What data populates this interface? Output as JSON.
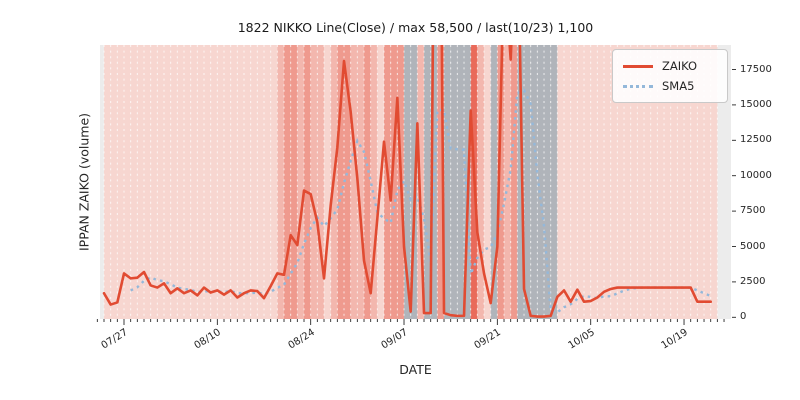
{
  "figure": {
    "title": "1822 NIKKO Line(Close) / max 58,500 / last(10/23) 1,100",
    "xlabel": "DATE",
    "ylabel": "IPPAN ZAIKO (volume)"
  },
  "legend": {
    "items": [
      {
        "label": "ZAIKO",
        "style": "solid",
        "color": "#e14b32"
      },
      {
        "label": "SMA5",
        "style": "dotted",
        "color": "#94b8da"
      }
    ]
  },
  "chart_data": {
    "type": "line",
    "title": "1822 NIKKO Line(Close) / max 58,500 / last(10/23) 1,100",
    "xlabel": "DATE",
    "ylabel": "IPPAN ZAIKO (volume)",
    "stats": {
      "max": 58500,
      "last_date": "10/23",
      "last_value": 1100
    },
    "y_ticks": [
      0,
      2500,
      5000,
      7500,
      10000,
      12500,
      15000,
      17500
    ],
    "ylim": [
      -400,
      19250
    ],
    "grid": "vertical-dashed-white-per-day",
    "legend_position": "upper right",
    "x_major_tick_labels": [
      "07/27",
      "08/10",
      "08/24",
      "09/07",
      "09/21",
      "10/05",
      "10/19"
    ],
    "x_major_tick_day_indexes": [
      3,
      17,
      31,
      45,
      59,
      73,
      87
    ],
    "dates": [
      "07/24",
      "07/25",
      "07/26",
      "07/27",
      "07/28",
      "07/29",
      "07/30",
      "07/31",
      "08/01",
      "08/02",
      "08/03",
      "08/04",
      "08/05",
      "08/06",
      "08/07",
      "08/08",
      "08/09",
      "08/10",
      "08/11",
      "08/12",
      "08/13",
      "08/14",
      "08/15",
      "08/16",
      "08/17",
      "08/18",
      "08/19",
      "08/20",
      "08/21",
      "08/22",
      "08/23",
      "08/24",
      "08/25",
      "08/26",
      "08/27",
      "08/28",
      "08/29",
      "08/30",
      "08/31",
      "09/01",
      "09/02",
      "09/03",
      "09/04",
      "09/05",
      "09/06",
      "09/07",
      "09/08",
      "09/09",
      "09/10",
      "09/11",
      "09/12",
      "09/13",
      "09/14",
      "09/15",
      "09/16",
      "09/17",
      "09/18",
      "09/19",
      "09/20",
      "09/21",
      "09/22",
      "09/23",
      "09/24",
      "09/25",
      "09/26",
      "09/27",
      "09/28",
      "09/29",
      "09/30",
      "10/01",
      "10/02",
      "10/03",
      "10/04",
      "10/05",
      "10/06",
      "10/07",
      "10/08",
      "10/09",
      "10/10",
      "10/11",
      "10/12",
      "10/13",
      "10/14",
      "10/15",
      "10/16",
      "10/17",
      "10/18",
      "10/19",
      "10/20",
      "10/21",
      "10/22",
      "10/23"
    ],
    "series": [
      {
        "name": "ZAIKO",
        "color": "#e14b32",
        "line_style": "solid",
        "line_width": 2.6,
        "values": [
          1700,
          900,
          1050,
          3100,
          2750,
          2800,
          3200,
          2250,
          2100,
          2400,
          1700,
          2050,
          1700,
          1900,
          1550,
          2100,
          1750,
          1900,
          1600,
          1900,
          1400,
          1700,
          1900,
          1850,
          1350,
          2200,
          3100,
          3000,
          5800,
          5100,
          8950,
          8700,
          6700,
          2750,
          7900,
          12000,
          18100,
          14500,
          9800,
          4000,
          1700,
          7000,
          12400,
          8250,
          15500,
          5000,
          400,
          13700,
          300,
          300,
          58500,
          300,
          150,
          100,
          100,
          14600,
          6000,
          3100,
          1000,
          5000,
          25000,
          18200,
          30000,
          2000,
          100,
          50,
          50,
          100,
          1450,
          1900,
          1100,
          1950,
          1100,
          1150,
          1400,
          1800,
          2000,
          2100,
          2100,
          2100,
          2100,
          2100,
          2100,
          2100,
          2100,
          2100,
          2100,
          2100,
          2100,
          1100,
          1100,
          1100
        ]
      },
      {
        "name": "SMA5",
        "color": "#94b8da",
        "line_style": "dotted",
        "line_width": 2.4,
        "values": [
          null,
          null,
          null,
          null,
          1900,
          2120,
          2580,
          2820,
          2620,
          2550,
          2330,
          2100,
          1990,
          1950,
          1780,
          1860,
          1800,
          1840,
          1780,
          1850,
          1710,
          1700,
          1700,
          1750,
          1640,
          1800,
          2080,
          2300,
          3090,
          3840,
          5190,
          6310,
          7050,
          6440,
          7000,
          7610,
          9490,
          11050,
          12460,
          11680,
          9620,
          7400,
          6980,
          6670,
          8970,
          9630,
          8310,
          8570,
          6980,
          3940,
          14640,
          14620,
          11910,
          11870,
          11830,
          3050,
          4190,
          4780,
          4960,
          5940,
          8020,
          10460,
          15840,
          16040,
          15060,
          10070,
          6440,
          460,
          350,
          710,
          920,
          1300,
          1500,
          1440,
          1340,
          1480,
          1490,
          1690,
          1880,
          2020,
          2080,
          2100,
          2100,
          2100,
          2100,
          2100,
          2100,
          2100,
          2100,
          1900,
          1700,
          1500
        ]
      }
    ],
    "background_day_bands": {
      "palette": {
        "p0": "#f7d6d0",
        "p1": "#f3b7ae",
        "p2": "#ef9a8e",
        "p3": "#e96a5a",
        "g": "#b0b4ba"
      },
      "day_colors": [
        "p0",
        "p0",
        "p0",
        "p0",
        "p0",
        "p0",
        "p0",
        "p0",
        "p0",
        "p0",
        "p0",
        "p0",
        "p0",
        "p0",
        "p0",
        "p0",
        "p0",
        "p0",
        "p0",
        "p0",
        "p0",
        "p0",
        "p0",
        "p0",
        "p0",
        "p0",
        "p1",
        "p2",
        "p2",
        "p1",
        "p2",
        "p1",
        "p1",
        "p0",
        "p1",
        "p2",
        "p2",
        "p1",
        "p1",
        "p2",
        "p1",
        "p0",
        "p2",
        "p2",
        "p2",
        "g",
        "g",
        "p1",
        "g",
        "g",
        "p2",
        "g",
        "g",
        "g",
        "g",
        "p3",
        "p1",
        "p0",
        "g",
        "p2",
        "p1",
        "p2",
        "g",
        "g",
        "g",
        "g",
        "g",
        "g",
        "p0",
        "p0",
        "p0",
        "p0",
        "p0",
        "p0",
        "p0",
        "p0",
        "p0",
        "p0",
        "p0",
        "p0",
        "p0",
        "p0",
        "p0",
        "p0",
        "p0",
        "p0",
        "p0",
        "p0",
        "p0",
        "p0",
        "p0",
        "p0"
      ]
    }
  }
}
